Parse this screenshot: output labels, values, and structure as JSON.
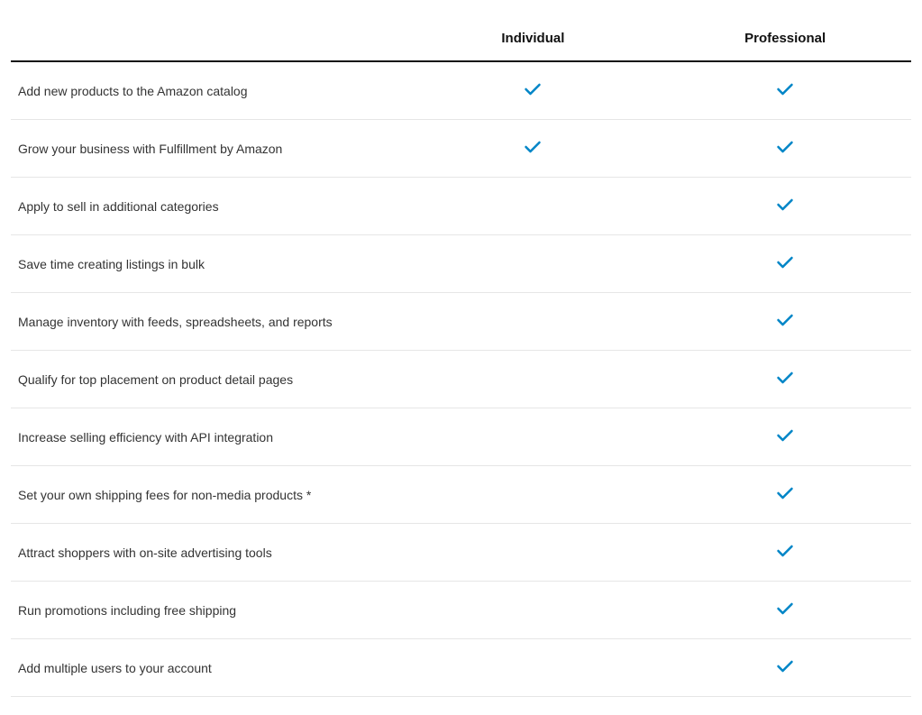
{
  "table": {
    "columns": [
      "",
      "Individual",
      "Professional"
    ],
    "check_color": "#0085c7",
    "header_border_color": "#111111",
    "row_border_color": "#e6e6e6",
    "font_size_header": 15,
    "font_size_body": 14,
    "rows": [
      {
        "feature": "Add new products to the Amazon catalog",
        "individual": true,
        "professional": true
      },
      {
        "feature": "Grow your business with Fulfillment by Amazon",
        "individual": true,
        "professional": true
      },
      {
        "feature": "Apply to sell in additional categories",
        "individual": false,
        "professional": true
      },
      {
        "feature": "Save time creating listings in bulk",
        "individual": false,
        "professional": true
      },
      {
        "feature": "Manage inventory with feeds, spreadsheets, and reports",
        "individual": false,
        "professional": true
      },
      {
        "feature": "Qualify for top placement on product detail pages",
        "individual": false,
        "professional": true
      },
      {
        "feature": "Increase selling efficiency with API integration",
        "individual": false,
        "professional": true
      },
      {
        "feature": "Set your own shipping fees for non-media products *",
        "individual": false,
        "professional": true
      },
      {
        "feature": "Attract shoppers with on-site advertising tools",
        "individual": false,
        "professional": true
      },
      {
        "feature": "Run promotions including free shipping",
        "individual": false,
        "professional": true
      },
      {
        "feature": "Add multiple users to your account",
        "individual": false,
        "professional": true
      }
    ]
  }
}
